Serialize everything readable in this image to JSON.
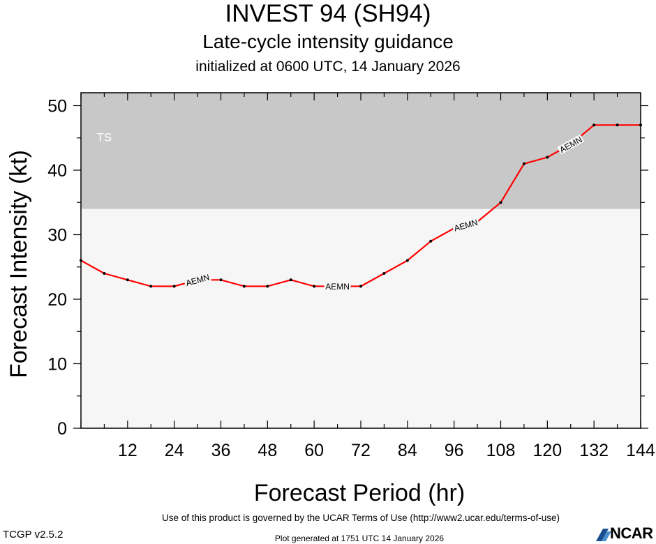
{
  "chart_data": {
    "type": "line",
    "title": "INVEST 94 (SH94)",
    "subtitle": "Late-cycle intensity guidance",
    "subtitle2": "initialized at 0600 UTC, 14 January 2026",
    "xlabel": "Forecast Period (hr)",
    "ylabel": "Forecast Intensity (kt)",
    "xlim": [
      0,
      144
    ],
    "ylim": [
      0,
      52
    ],
    "x_ticks": [
      12,
      24,
      36,
      48,
      60,
      72,
      84,
      96,
      108,
      120,
      132,
      144
    ],
    "y_ticks": [
      0,
      10,
      20,
      30,
      40,
      50
    ],
    "ts_band": {
      "label": "TS",
      "from": 34,
      "to": 52
    },
    "series": [
      {
        "name": "AEMN",
        "color": "#ff0000",
        "x": [
          0,
          6,
          12,
          18,
          24,
          30,
          36,
          42,
          48,
          54,
          60,
          66,
          72,
          78,
          84,
          90,
          96,
          102,
          108,
          114,
          120,
          126,
          132,
          138,
          144
        ],
        "y": [
          26,
          24,
          23,
          22,
          22,
          23,
          23,
          22,
          22,
          23,
          22,
          22,
          22,
          24,
          26,
          29,
          31,
          32,
          35,
          41,
          42,
          44,
          47,
          47,
          47
        ],
        "label_at": [
          30,
          66,
          99,
          126
        ]
      }
    ]
  },
  "footer": {
    "terms": "Use of this product is governed by the UCAR Terms of Use (http://www2.ucar.edu/terms-of-use)",
    "version": "TCGP v2.5.2",
    "generated": "Plot generated at 1751 UTC   14 January 2026",
    "logo_text": "NCAR"
  },
  "colors": {
    "ts_band": "#c8c8c8",
    "plot_bg": "#f6f6f6",
    "line": "#ff0000"
  }
}
